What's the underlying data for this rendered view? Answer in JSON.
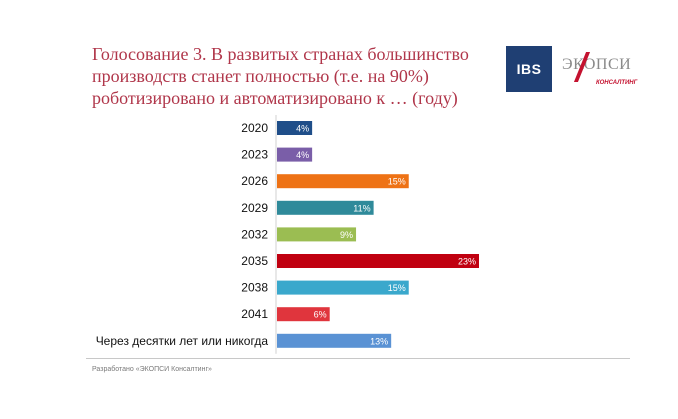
{
  "title_lines": [
    "Голосование 3. В развитых странах большинство",
    "производств станет полностью (т.е. на 90%)",
    "роботизировано и автоматизировано к … (году)"
  ],
  "logos": {
    "ibs": "IBS",
    "ecopsy_word": "ЭКОПСИ",
    "ecopsy_sub": "КОНСАЛТИНГ"
  },
  "footer": "Разработано «ЭКОПСИ Консалтинг»",
  "colors": {
    "title": "#b0364a",
    "bars": [
      "#1f4e89",
      "#7a5ea8",
      "#ee7215",
      "#2f8a9a",
      "#9bbd52",
      "#c00010",
      "#3aa8cc",
      "#e0353d",
      "#5a92d4"
    ]
  },
  "chart_data": {
    "type": "bar",
    "orientation": "horizontal",
    "categories": [
      "2020",
      "2023",
      "2026",
      "2029",
      "2032",
      "2035",
      "2038",
      "2041",
      "Через десятки лет или никогда"
    ],
    "values": [
      4,
      4,
      15,
      11,
      9,
      23,
      15,
      6,
      13
    ],
    "value_labels": [
      "4%",
      "4%",
      "15%",
      "11%",
      "9%",
      "23%",
      "15%",
      "6%",
      "13%"
    ],
    "unit": "%",
    "xlim": [
      0,
      23
    ],
    "grid": false,
    "legend": "none"
  }
}
